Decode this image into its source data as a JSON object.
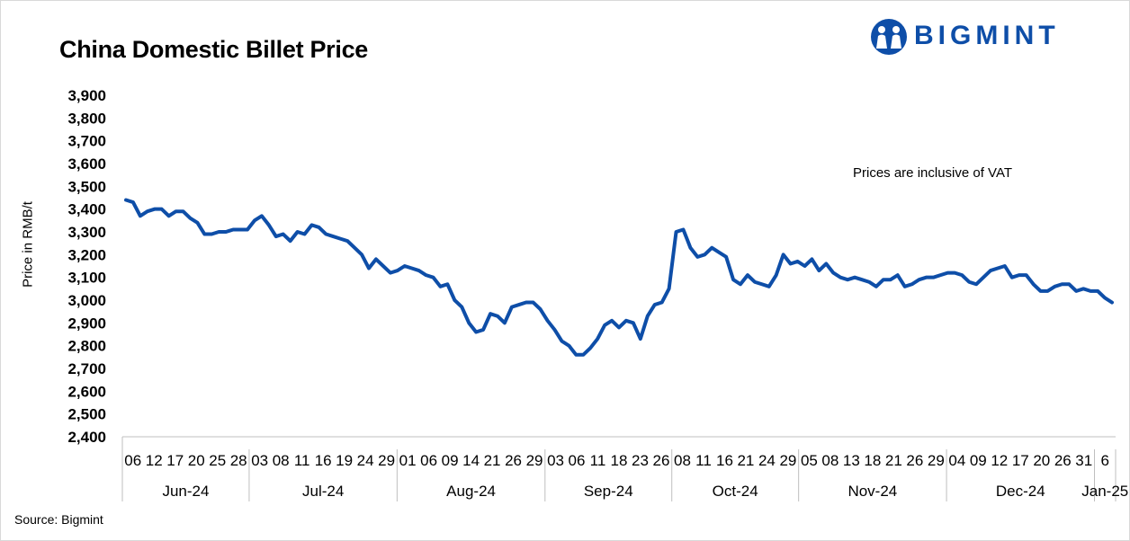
{
  "chart_data": {
    "type": "line",
    "title": "China Domestic Billet Price",
    "ylabel": "Price in RMB/t",
    "xlabel": "",
    "note": "Prices are inclusive of VAT",
    "source": "Source: Bigmint",
    "ylim": [
      2400,
      3900
    ],
    "ytick_labels": [
      "2,400",
      "2,500",
      "2,600",
      "2,700",
      "2,800",
      "2,900",
      "3,000",
      "3,100",
      "3,200",
      "3,300",
      "3,400",
      "3,500",
      "3,600",
      "3,700",
      "3,800",
      "3,900"
    ],
    "grid": false,
    "legend": "none",
    "line_color": "#0e4ea8",
    "day_labels": [
      "06",
      "12",
      "17",
      "20",
      "25",
      "28",
      "03",
      "08",
      "11",
      "16",
      "19",
      "24",
      "29",
      "01",
      "06",
      "09",
      "14",
      "21",
      "26",
      "29",
      "03",
      "06",
      "11",
      "18",
      "23",
      "26",
      "08",
      "11",
      "16",
      "21",
      "24",
      "29",
      "05",
      "08",
      "13",
      "18",
      "21",
      "26",
      "29",
      "04",
      "09",
      "12",
      "17",
      "20",
      "26",
      "31",
      "6"
    ],
    "months": [
      {
        "label": "Jun-24",
        "start_index": 0,
        "end_index": 5
      },
      {
        "label": "Jul-24",
        "start_index": 6,
        "end_index": 12
      },
      {
        "label": "Aug-24",
        "start_index": 13,
        "end_index": 19
      },
      {
        "label": "Sep-24",
        "start_index": 20,
        "end_index": 25
      },
      {
        "label": "Oct-24",
        "start_index": 26,
        "end_index": 31
      },
      {
        "label": "Nov-24",
        "start_index": 32,
        "end_index": 38
      },
      {
        "label": "Dec-24",
        "start_index": 39,
        "end_index": 45
      },
      {
        "label": "Jan-25",
        "start_index": 46,
        "end_index": 46
      }
    ],
    "values": [
      3440,
      3430,
      3370,
      3390,
      3400,
      3400,
      3370,
      3390,
      3390,
      3360,
      3340,
      3290,
      3290,
      3300,
      3300,
      3310,
      3310,
      3310,
      3350,
      3370,
      3330,
      3280,
      3290,
      3260,
      3300,
      3290,
      3330,
      3320,
      3290,
      3280,
      3270,
      3260,
      3230,
      3200,
      3140,
      3180,
      3150,
      3120,
      3130,
      3150,
      3140,
      3130,
      3110,
      3100,
      3060,
      3070,
      3000,
      2970,
      2900,
      2860,
      2870,
      2940,
      2930,
      2900,
      2970,
      2980,
      2990,
      2990,
      2960,
      2910,
      2870,
      2820,
      2800,
      2760,
      2760,
      2790,
      2830,
      2890,
      2910,
      2880,
      2910,
      2900,
      2830,
      2930,
      2980,
      2990,
      3050,
      3300,
      3310,
      3230,
      3190,
      3200,
      3230,
      3210,
      3190,
      3090,
      3070,
      3110,
      3080,
      3070,
      3060,
      3110,
      3200,
      3160,
      3170,
      3150,
      3180,
      3130,
      3160,
      3120,
      3100,
      3090,
      3100,
      3090,
      3080,
      3060,
      3090,
      3090,
      3110,
      3060,
      3070,
      3090,
      3100,
      3100,
      3110,
      3120,
      3120,
      3110,
      3080,
      3070,
      3100,
      3130,
      3140,
      3150,
      3100,
      3110,
      3110,
      3070,
      3040,
      3040,
      3060,
      3070,
      3070,
      3040,
      3050,
      3040,
      3040,
      3010,
      2990
    ]
  },
  "logo": {
    "text": "BIGMINT"
  }
}
